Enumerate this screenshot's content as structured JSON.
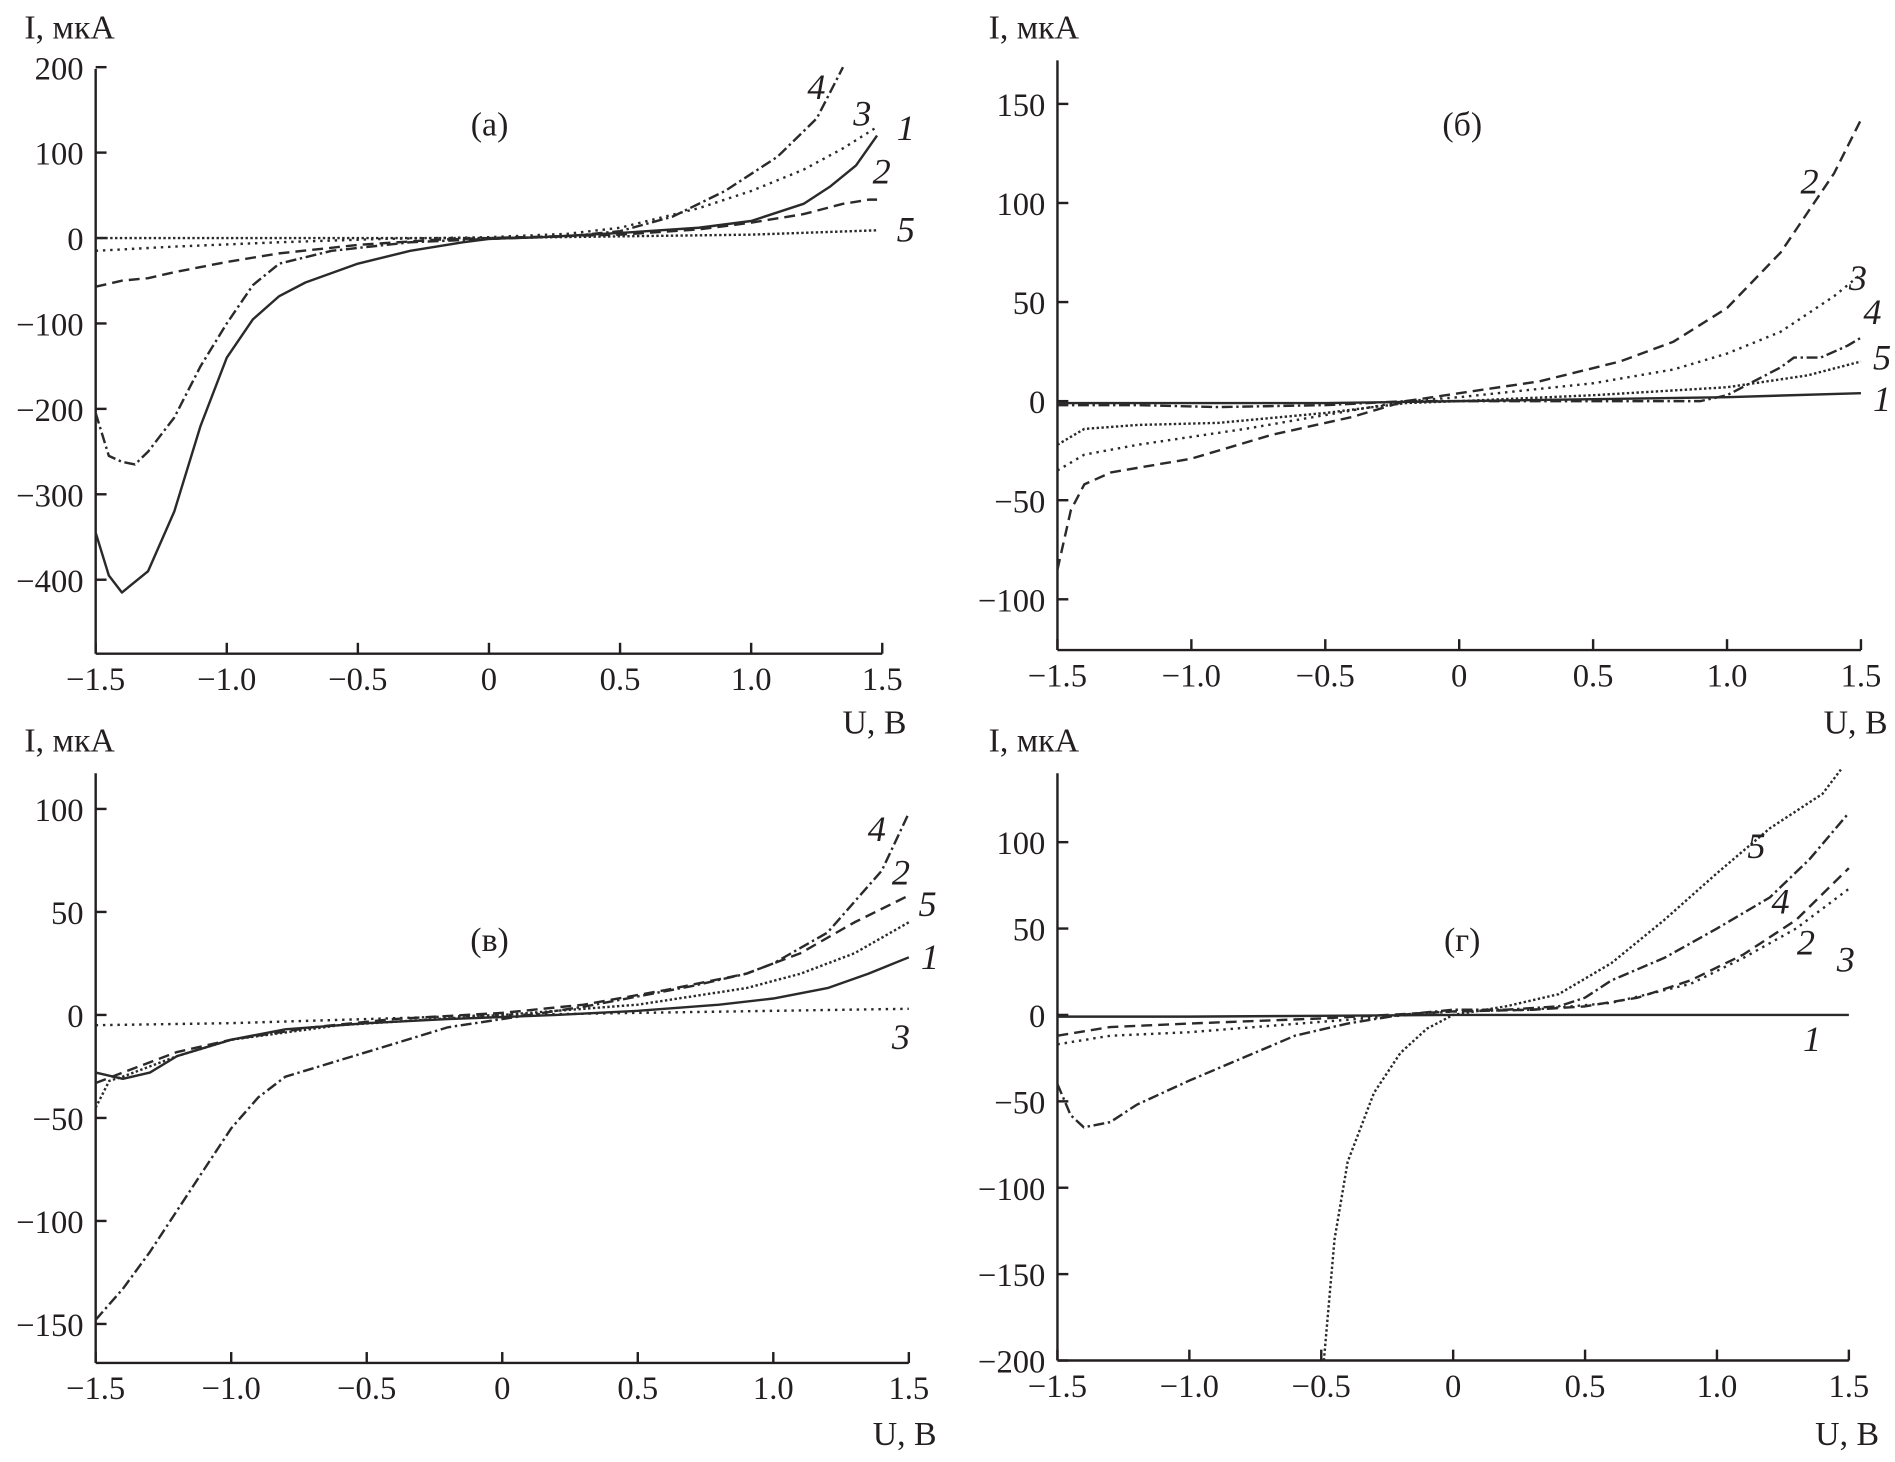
{
  "chart_data": [
    {
      "type": "line",
      "panel_label": "(а)",
      "ylabel": "I, мкА",
      "xlabel": "U, В",
      "xlim": [
        -1.5,
        1.5
      ],
      "ylim": [
        -485,
        200
      ],
      "xticks": [
        -1.5,
        -1.0,
        -0.5,
        0,
        0.5,
        1.0,
        1.5
      ],
      "xtick_labels": [
        "−1.5",
        "−1.0",
        "−0.5",
        "0",
        "0.5",
        "1.0",
        "1.5"
      ],
      "yticks": [
        200,
        100,
        0,
        -100,
        -200,
        -300,
        -400
      ],
      "ytick_labels": [
        "200",
        "100",
        "0",
        "−100",
        "−200",
        "−300",
        "−400"
      ],
      "grid": false,
      "series": [
        {
          "name": "1",
          "style": "solid",
          "x": [
            -1.5,
            -1.45,
            -1.4,
            -1.3,
            -1.2,
            -1.1,
            -1.0,
            -0.9,
            -0.8,
            -0.7,
            -0.5,
            -0.3,
            -0.1,
            0,
            0.2,
            0.5,
            0.8,
            1.0,
            1.2,
            1.3,
            1.4,
            1.48
          ],
          "y": [
            -345,
            -395,
            -415,
            -390,
            -320,
            -220,
            -140,
            -95,
            -68,
            -52,
            -30,
            -15,
            -5,
            -1,
            1,
            6,
            12,
            20,
            40,
            60,
            85,
            120
          ]
        },
        {
          "name": "2",
          "style": "dashed",
          "x": [
            -1.5,
            -1.4,
            -1.3,
            -1.2,
            -1.0,
            -0.8,
            -0.5,
            -0.2,
            0,
            0.5,
            0.8,
            1.0,
            1.2,
            1.35,
            1.45,
            1.48
          ],
          "y": [
            -57,
            -50,
            -47,
            -40,
            -28,
            -18,
            -8,
            -2,
            0,
            4,
            10,
            18,
            28,
            40,
            45,
            45
          ]
        },
        {
          "name": "3",
          "style": "dotted",
          "x": [
            -1.5,
            -1.2,
            -0.8,
            -0.4,
            0,
            0.3,
            0.5,
            0.8,
            1.0,
            1.2,
            1.35,
            1.48
          ],
          "y": [
            -15,
            -10,
            -5,
            -1,
            1,
            5,
            12,
            35,
            55,
            80,
            105,
            130
          ]
        },
        {
          "name": "4",
          "style": "dash-dot",
          "x": [
            -1.5,
            -1.45,
            -1.4,
            -1.35,
            -1.3,
            -1.2,
            -1.1,
            -1.0,
            -0.9,
            -0.8,
            -0.6,
            -0.3,
            0,
            0.3,
            0.5,
            0.7,
            0.9,
            1.1,
            1.25,
            1.35
          ],
          "y": [
            -205,
            -255,
            -262,
            -265,
            -250,
            -210,
            -150,
            -100,
            -55,
            -30,
            -15,
            -5,
            -1,
            2,
            8,
            25,
            55,
            95,
            140,
            200
          ]
        },
        {
          "name": "5",
          "style": "fine-dotted",
          "x": [
            -1.5,
            -1.0,
            -0.5,
            0,
            0.5,
            1.0,
            1.48
          ],
          "y": [
            0,
            0,
            0,
            0,
            2,
            4,
            9
          ]
        }
      ]
    },
    {
      "type": "line",
      "panel_label": "(б)",
      "ylabel": "I, мкА",
      "xlabel": "U, В",
      "xlim": [
        -1.5,
        1.5
      ],
      "ylim": [
        -125,
        172
      ],
      "xticks": [
        -1.5,
        -1.0,
        -0.5,
        0,
        0.5,
        1.0,
        1.5
      ],
      "xtick_labels": [
        "−1.5",
        "−1.0",
        "−0.5",
        "0",
        "0.5",
        "1.0",
        "1.5"
      ],
      "yticks": [
        150,
        100,
        50,
        0,
        -50,
        -100
      ],
      "ytick_labels": [
        "150",
        "100",
        "50",
        "0",
        "−50",
        "−100"
      ],
      "grid": false,
      "series": [
        {
          "name": "1",
          "style": "solid",
          "x": [
            -1.5,
            -1.0,
            -0.5,
            0,
            0.5,
            1.0,
            1.5
          ],
          "y": [
            -1,
            -1,
            -1,
            0,
            1,
            2,
            4
          ]
        },
        {
          "name": "2",
          "style": "dashed",
          "x": [
            -1.5,
            -1.45,
            -1.4,
            -1.3,
            -1.0,
            -0.7,
            -0.4,
            -0.2,
            0,
            0.3,
            0.6,
            0.8,
            1.0,
            1.2,
            1.4,
            1.5
          ],
          "y": [
            -85,
            -55,
            -42,
            -36,
            -29,
            -17,
            -8,
            0,
            4,
            10,
            20,
            30,
            47,
            75,
            115,
            142
          ]
        },
        {
          "name": "3",
          "style": "dotted",
          "x": [
            -1.5,
            -1.4,
            -1.2,
            -0.8,
            -0.5,
            -0.2,
            0,
            0.5,
            0.8,
            1.0,
            1.2,
            1.4,
            1.5
          ],
          "y": [
            -35,
            -27,
            -22,
            -14,
            -7,
            0,
            2,
            9,
            16,
            24,
            35,
            53,
            64
          ]
        },
        {
          "name": "4",
          "style": "dash-dot",
          "x": [
            -1.5,
            -1.2,
            -0.9,
            -0.5,
            -0.2,
            0,
            0.5,
            0.9,
            1.0,
            1.1,
            1.2,
            1.25,
            1.35,
            1.45,
            1.5
          ],
          "y": [
            -2,
            -2,
            -3,
            -2,
            0,
            0,
            0,
            0,
            3,
            10,
            17,
            22,
            22,
            28,
            32
          ]
        },
        {
          "name": "5",
          "style": "fine-dotted",
          "x": [
            -1.5,
            -1.4,
            -1.2,
            -0.9,
            -0.5,
            -0.2,
            0,
            0.5,
            1.0,
            1.3,
            1.5
          ],
          "y": [
            -22,
            -14,
            -12,
            -11,
            -6,
            -1,
            0,
            3,
            7,
            13,
            20
          ]
        }
      ]
    },
    {
      "type": "line",
      "panel_label": "(в)",
      "ylabel": "I, мкА",
      "xlabel": "U, В",
      "xlim": [
        -1.5,
        1.5
      ],
      "ylim": [
        -168,
        117
      ],
      "xticks": [
        -1.5,
        -1.0,
        -0.5,
        0,
        0.5,
        1.0,
        1.5
      ],
      "xtick_labels": [
        "−1.5",
        "−1.0",
        "−0.5",
        "0",
        "0.5",
        "1.0",
        "1.5"
      ],
      "yticks": [
        100,
        50,
        0,
        -50,
        -100,
        -150
      ],
      "ytick_labels": [
        "100",
        "50",
        "0",
        "−50",
        "−100",
        "−150"
      ],
      "grid": false,
      "series": [
        {
          "name": "1",
          "style": "solid",
          "x": [
            -1.5,
            -1.4,
            -1.3,
            -1.2,
            -1.0,
            -0.8,
            -0.5,
            -0.2,
            0,
            0.2,
            0.5,
            0.8,
            1.0,
            1.2,
            1.35,
            1.5
          ],
          "y": [
            -28,
            -31,
            -28,
            -20,
            -12,
            -7,
            -4,
            -2,
            -1,
            0,
            2,
            5,
            8,
            13,
            20,
            28
          ]
        },
        {
          "name": "2",
          "style": "dashed",
          "x": [
            -1.5,
            -1.4,
            -1.2,
            -1.0,
            -0.7,
            -0.4,
            0,
            0.3,
            0.6,
            0.9,
            1.1,
            1.3,
            1.5
          ],
          "y": [
            -33,
            -28,
            -18,
            -12,
            -6,
            -2,
            1,
            5,
            12,
            20,
            30,
            45,
            58
          ]
        },
        {
          "name": "3",
          "style": "dotted",
          "x": [
            -1.5,
            -1.0,
            -0.5,
            0,
            0.5,
            1.0,
            1.5
          ],
          "y": [
            -5,
            -4,
            -2,
            0,
            1,
            2,
            3
          ]
        },
        {
          "name": "4",
          "style": "dash-dot",
          "x": [
            -1.5,
            -1.4,
            -1.3,
            -1.2,
            -1.1,
            -1.0,
            -0.9,
            -0.8,
            -0.6,
            -0.4,
            -0.2,
            0,
            0.1,
            0.3,
            0.5,
            0.7,
            0.9,
            1.0,
            1.2,
            1.3,
            1.4,
            1.5
          ],
          "y": [
            -148,
            -133,
            -115,
            -95,
            -75,
            -55,
            -40,
            -30,
            -22,
            -14,
            -6,
            -2,
            0,
            4,
            9,
            14,
            20,
            25,
            40,
            55,
            70,
            98
          ]
        },
        {
          "name": "5",
          "style": "fine-dotted",
          "x": [
            -1.5,
            -1.45,
            -1.4,
            -1.2,
            -1.0,
            -0.6,
            0,
            0.5,
            0.9,
            1.1,
            1.3,
            1.5
          ],
          "y": [
            -45,
            -32,
            -30,
            -20,
            -12,
            -5,
            0,
            5,
            13,
            20,
            30,
            45
          ]
        }
      ]
    },
    {
      "type": "line",
      "panel_label": "(г)",
      "ylabel": "I, мкА",
      "xlabel": "U, В",
      "xlim": [
        -1.5,
        1.5
      ],
      "ylim": [
        -200,
        140
      ],
      "xticks": [
        -1.5,
        -1.0,
        -0.5,
        0,
        0.5,
        1.0,
        1.5
      ],
      "xtick_labels": [
        "−1.5",
        "−1.0",
        "−0.5",
        "0",
        "0.5",
        "1.0",
        "1.5"
      ],
      "yticks": [
        100,
        50,
        0,
        -50,
        -100,
        -150,
        -200
      ],
      "ytick_labels": [
        "100",
        "50",
        "0",
        "−50",
        "−100",
        "−150",
        "−200"
      ],
      "grid": false,
      "series": [
        {
          "name": "1",
          "style": "solid",
          "x": [
            -1.5,
            -1.0,
            -0.5,
            0,
            0.5,
            1.0,
            1.5
          ],
          "y": [
            -1,
            -1,
            -0.5,
            0,
            0,
            0,
            0
          ]
        },
        {
          "name": "2",
          "style": "dashed",
          "x": [
            -1.5,
            -1.3,
            -1.0,
            -0.5,
            0,
            0.3,
            0.5,
            0.7,
            0.9,
            1.1,
            1.3,
            1.5
          ],
          "y": [
            -12,
            -7,
            -5,
            -2,
            2,
            3,
            5,
            10,
            20,
            35,
            55,
            85
          ]
        },
        {
          "name": "3",
          "style": "dotted",
          "x": [
            -1.5,
            -1.3,
            -1.0,
            -0.5,
            0,
            0.3,
            0.6,
            0.9,
            1.1,
            1.3,
            1.5
          ],
          "y": [
            -17,
            -12,
            -10,
            -4,
            2,
            3,
            7,
            18,
            33,
            50,
            73
          ]
        },
        {
          "name": "4",
          "style": "dash-dot",
          "x": [
            -1.5,
            -1.45,
            -1.4,
            -1.3,
            -1.2,
            -1.0,
            -0.8,
            -0.6,
            -0.4,
            -0.2,
            0,
            0.2,
            0.4,
            0.5,
            0.6,
            0.8,
            1.0,
            1.2,
            1.35,
            1.5
          ],
          "y": [
            -40,
            -58,
            -65,
            -62,
            -52,
            -38,
            -25,
            -12,
            -5,
            0,
            3,
            3,
            5,
            10,
            20,
            33,
            50,
            68,
            90,
            117
          ]
        },
        {
          "name": "5",
          "style": "fine-dotted",
          "x": [
            -0.49,
            -0.45,
            -0.4,
            -0.3,
            -0.2,
            -0.1,
            0,
            0.2,
            0.4,
            0.6,
            0.8,
            1.0,
            1.2,
            1.4,
            1.47
          ],
          "y": [
            -200,
            -130,
            -85,
            -45,
            -22,
            -8,
            0,
            5,
            12,
            30,
            55,
            82,
            108,
            128,
            142
          ]
        }
      ]
    }
  ]
}
